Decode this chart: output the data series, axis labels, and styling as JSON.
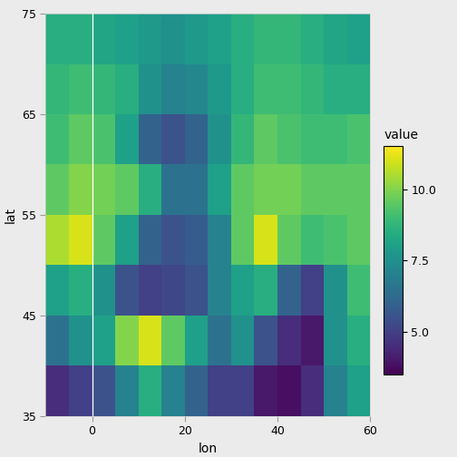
{
  "lon_min": -10,
  "lon_max": 60,
  "lat_min": 35,
  "lat_max": 75,
  "lon_step": 5,
  "lat_step": 5,
  "vmin": 3.5,
  "vmax": 11.5,
  "colormap": "viridis",
  "background_color": "#EBEBEB",
  "xlabel": "lon",
  "ylabel": "lat",
  "legend_title": "value",
  "legend_ticks": [
    5.0,
    7.5,
    10.0
  ],
  "vline_x": 0,
  "vline_color": "white",
  "lon_ticks": [
    0,
    20,
    40,
    60
  ],
  "lat_ticks": [
    35,
    45,
    55,
    65,
    75
  ],
  "grid": [
    [
      8.5,
      8.5,
      8.2,
      8.0,
      7.8,
      7.5,
      7.8,
      8.0,
      8.5,
      8.8,
      8.8,
      8.5,
      8.2,
      8.0
    ],
    [
      8.8,
      9.0,
      8.8,
      8.5,
      7.5,
      7.0,
      7.2,
      7.8,
      8.5,
      9.0,
      9.0,
      8.8,
      8.5,
      8.5
    ],
    [
      9.0,
      9.5,
      9.2,
      8.0,
      6.0,
      5.5,
      6.0,
      7.5,
      8.8,
      9.5,
      9.2,
      9.0,
      9.0,
      9.2
    ],
    [
      9.5,
      10.0,
      9.8,
      9.5,
      8.5,
      6.5,
      6.5,
      8.0,
      9.5,
      9.8,
      9.8,
      9.5,
      9.5,
      9.5
    ],
    [
      10.5,
      11.0,
      9.5,
      8.0,
      6.0,
      5.5,
      5.8,
      7.0,
      9.5,
      11.0,
      9.5,
      9.0,
      9.2,
      9.5
    ],
    [
      8.0,
      8.5,
      7.5,
      5.5,
      5.0,
      5.2,
      5.5,
      7.0,
      8.0,
      8.5,
      6.0,
      5.0,
      7.5,
      9.0
    ],
    [
      6.5,
      7.5,
      8.0,
      10.0,
      11.0,
      9.5,
      8.0,
      6.5,
      7.5,
      5.5,
      4.5,
      4.0,
      7.5,
      8.5
    ],
    [
      4.5,
      5.0,
      5.5,
      7.0,
      8.5,
      7.0,
      6.0,
      5.0,
      5.0,
      4.0,
      3.8,
      4.5,
      7.0,
      8.0
    ]
  ]
}
